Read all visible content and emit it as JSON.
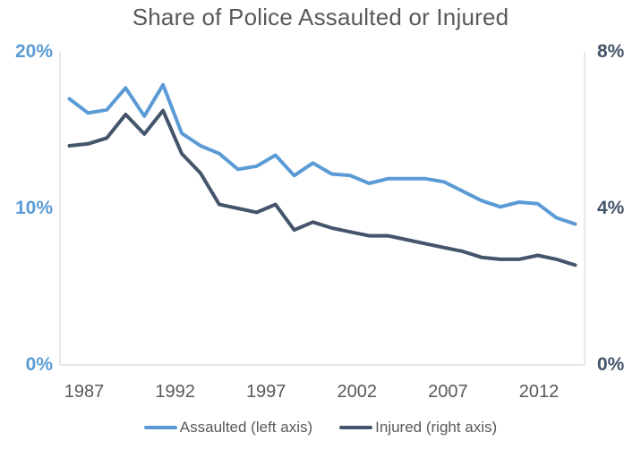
{
  "chart_data": {
    "type": "line",
    "title": "Share of Police Assaulted or Injured",
    "x": [
      1987,
      1988,
      1989,
      1990,
      1991,
      1992,
      1993,
      1994,
      1995,
      1996,
      1997,
      1998,
      1999,
      2000,
      2001,
      2002,
      2003,
      2004,
      2005,
      2006,
      2007,
      2008,
      2009,
      2010,
      2011,
      2012,
      2013,
      2014
    ],
    "x_tick_labels": [
      "1987",
      "1992",
      "1997",
      "2002",
      "2007",
      "2012"
    ],
    "left_axis": {
      "ticks": [
        "0%",
        "10%",
        "20%"
      ],
      "range": [
        0,
        20
      ],
      "color": "#5B9BD5"
    },
    "right_axis": {
      "ticks": [
        "0%",
        "4%",
        "8%"
      ],
      "range": [
        0,
        8
      ],
      "color": "#44546A"
    },
    "series": [
      {
        "name": "Assaulted (left axis)",
        "axis": "left",
        "color": "#5B9BD5",
        "values": [
          17.0,
          16.1,
          16.3,
          17.7,
          15.9,
          17.9,
          14.8,
          14.0,
          13.5,
          12.5,
          12.7,
          13.4,
          12.1,
          12.9,
          12.2,
          12.1,
          11.6,
          11.9,
          11.9,
          11.9,
          11.7,
          11.1,
          10.5,
          10.1,
          10.4,
          10.3,
          9.4,
          9.0
        ]
      },
      {
        "name": "Injured (right axis)",
        "axis": "right",
        "color": "#44546A",
        "values": [
          5.6,
          5.65,
          5.8,
          6.4,
          5.9,
          6.5,
          5.4,
          4.9,
          4.1,
          4.0,
          3.9,
          4.1,
          3.45,
          3.65,
          3.5,
          3.4,
          3.3,
          3.3,
          3.2,
          3.1,
          3.0,
          2.9,
          2.75,
          2.7,
          2.7,
          2.8,
          2.7,
          2.55
        ]
      }
    ],
    "legend": {
      "position": "bottom",
      "entries": [
        "Assaulted (left axis)",
        "Injured (right axis)"
      ]
    },
    "grid": false
  },
  "colors": {
    "title_text": "#595959",
    "axis_line": "#D9D9D9",
    "x_tick_text": "#595959"
  }
}
